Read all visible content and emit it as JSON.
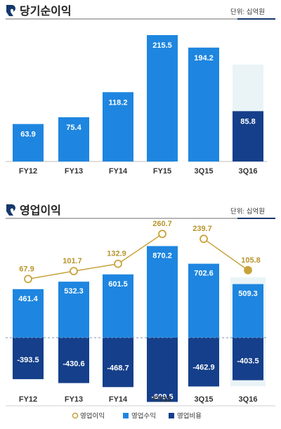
{
  "colors": {
    "accent_navy": "#14386b",
    "revenue_blue": "#1e86e0",
    "cost_navy": "#153f8a",
    "op_income_gold": "#c8a23a",
    "highlight_bg": "#eaf4f7",
    "rule_gray": "#bfbfbf"
  },
  "icons": {
    "section_mark": "stylized-S-logo-icon"
  },
  "chart_data": [
    {
      "type": "bar",
      "title": "당기순이익",
      "unit": "단위: 십억원",
      "categories": [
        "FY12",
        "FY13",
        "FY14",
        "FY15",
        "3Q15",
        "3Q16"
      ],
      "values": [
        63.9,
        75.4,
        118.2,
        215.5,
        194.2,
        85.8
      ],
      "highlight": "3Q16",
      "grid": false,
      "legend": "none"
    },
    {
      "type": "bar",
      "title": "영업이익",
      "unit": "단위: 십억원",
      "categories": [
        "FY12",
        "FY13",
        "FY14",
        "FY15",
        "3Q15",
        "3Q16"
      ],
      "series": [
        {
          "name": "영업이익",
          "type": "line",
          "values": [
            67.9,
            101.7,
            132.9,
            260.7,
            239.7,
            105.8
          ]
        },
        {
          "name": "영업수익",
          "type": "bar",
          "values": [
            461.4,
            532.3,
            601.5,
            870.2,
            702.6,
            509.3
          ]
        },
        {
          "name": "영업비용",
          "type": "bar",
          "values": [
            -393.5,
            -430.6,
            -468.7,
            -609.5,
            -462.9,
            -403.5
          ]
        }
      ],
      "highlight": "3Q16",
      "grid": false,
      "legend": "bottom"
    }
  ]
}
